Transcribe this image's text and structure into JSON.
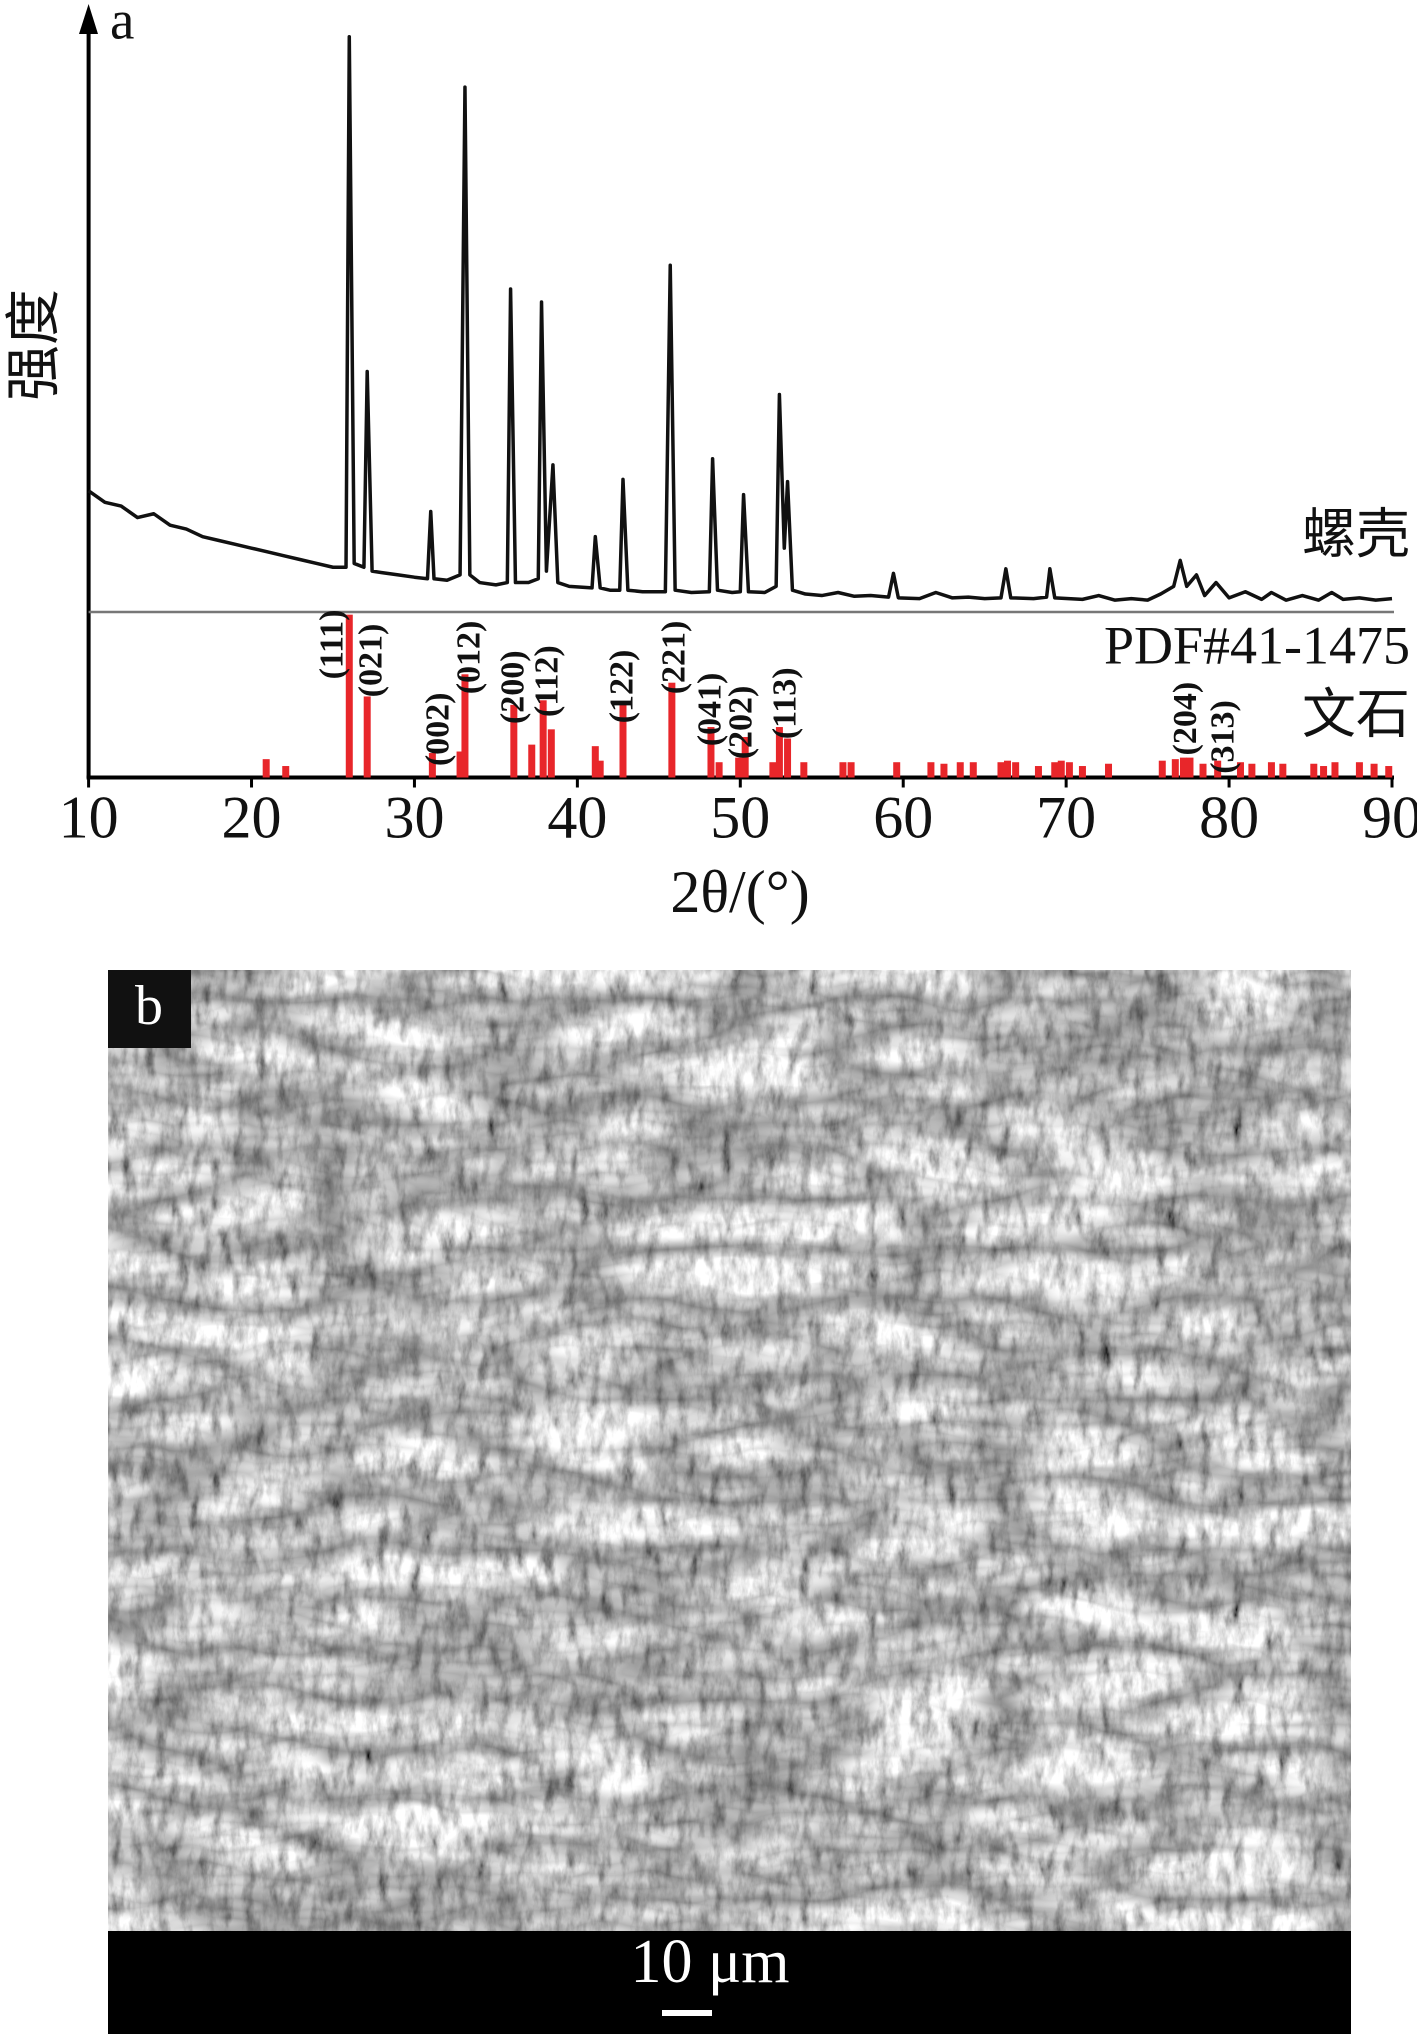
{
  "chart_data": {
    "type": "line",
    "label": "a",
    "ylabel": "强度",
    "xlabel": "2θ/(°)",
    "xlim": [
      10,
      90
    ],
    "xticks": [
      10,
      20,
      30,
      40,
      50,
      60,
      70,
      80,
      90
    ],
    "ylim": [
      0,
      100
    ],
    "series": [
      {
        "name": [
          "螺壳"
        ],
        "type": "line",
        "color": "#111111",
        "x": [
          10,
          11,
          12,
          13,
          14,
          15,
          16,
          17,
          18,
          19,
          20,
          21,
          22,
          23,
          24,
          25,
          25.8,
          26.0,
          26.3,
          26.9,
          27.1,
          27.4,
          28,
          29,
          30,
          30.8,
          31.0,
          31.2,
          32,
          32.8,
          33.1,
          33.4,
          34,
          35,
          35.7,
          35.9,
          36.2,
          37,
          37.6,
          37.8,
          38.1,
          38.5,
          38.8,
          39.5,
          40.9,
          41.1,
          41.4,
          42,
          42.6,
          42.8,
          43.1,
          44,
          45.4,
          45.7,
          46.0,
          47,
          48.1,
          48.3,
          48.6,
          49.5,
          50.0,
          50.2,
          50.5,
          51.5,
          52.2,
          52.4,
          52.7,
          52.9,
          53.2,
          54,
          55,
          56,
          57,
          58,
          59.1,
          59.4,
          59.7,
          61,
          62,
          63,
          64,
          65,
          66,
          66.3,
          66.6,
          68,
          68.8,
          69.0,
          69.3,
          71,
          72,
          73,
          74,
          75,
          75.8,
          76.6,
          77.0,
          77.4,
          78,
          78.5,
          79.2,
          80,
          81,
          82,
          82.6,
          83.5,
          84.5,
          85.5,
          86.3,
          87,
          88,
          89,
          90
        ],
        "values": [
          37.5,
          36,
          35.5,
          34,
          34.5,
          33,
          32.5,
          31.5,
          31,
          30.5,
          30,
          29.5,
          29,
          28.5,
          28,
          27.5,
          27.5,
          96.9,
          28,
          27.5,
          53.1,
          27,
          26.8,
          26.5,
          26.2,
          26,
          34.8,
          26,
          25.8,
          26.5,
          90.3,
          26.5,
          25.5,
          25.2,
          25.5,
          63.9,
          25.5,
          25.5,
          26,
          62.2,
          27,
          40.9,
          25.5,
          25,
          24.8,
          31.5,
          24.8,
          24.5,
          24.5,
          39,
          24.5,
          24.3,
          24.3,
          67,
          24.5,
          24.2,
          24.3,
          41.7,
          24.5,
          24.2,
          24.3,
          37,
          24.3,
          24.2,
          25,
          50.1,
          30,
          38.7,
          24.5,
          24,
          23.8,
          24.2,
          23.7,
          23.8,
          23.6,
          26.7,
          23.5,
          23.4,
          24.2,
          23.5,
          23.6,
          23.4,
          23.5,
          27.3,
          23.5,
          23.4,
          23.6,
          27.3,
          23.5,
          23.3,
          23.8,
          23.2,
          23.4,
          23.2,
          24,
          25,
          28.4,
          25,
          26.5,
          23.8,
          25.5,
          23.5,
          24.3,
          23.3,
          24.2,
          23.2,
          23.8,
          23.2,
          24.2,
          23.3,
          23.5,
          23.2,
          23.4
        ]
      },
      {
        "name": [
          "PDF#41-1475",
          "文石"
        ],
        "type": "stick",
        "color": "#e8262a",
        "x": [
          20.9,
          22.1,
          26.0,
          27.1,
          31.1,
          32.8,
          33.1,
          36.1,
          37.2,
          37.9,
          38.4,
          41.1,
          41.4,
          42.8,
          45.8,
          48.2,
          48.7,
          49.9,
          50.3,
          52.0,
          52.4,
          52.9,
          53.9,
          56.3,
          56.8,
          59.6,
          61.7,
          62.5,
          63.5,
          64.3,
          66.0,
          66.4,
          66.9,
          68.3,
          69.3,
          69.7,
          70.2,
          71.0,
          72.6,
          75.9,
          76.7,
          77.2,
          77.6,
          78.4,
          79.3,
          80.7,
          81.4,
          82.6,
          83.3,
          85.2,
          85.8,
          86.5,
          88.0,
          88.9,
          89.8
        ],
        "values": [
          2.4,
          1.5,
          21.3,
          10.6,
          3.2,
          3.4,
          13.5,
          9.5,
          4.3,
          10.1,
          6.3,
          4.1,
          2.2,
          9.5,
          12.4,
          6.6,
          2,
          2.6,
          5.3,
          2,
          6.6,
          5.1,
          2,
          2,
          2,
          2,
          2,
          1.8,
          2,
          2,
          2,
          2.2,
          2,
          1.5,
          2,
          2.2,
          2,
          1.5,
          1.8,
          2.2,
          2.4,
          2.6,
          2.6,
          1.8,
          2.2,
          2,
          1.8,
          2,
          1.8,
          1.8,
          1.5,
          2,
          2,
          1.8,
          1.5
        ]
      }
    ],
    "annotations": [
      {
        "text": "(111)",
        "x": 25.1,
        "y": 17.4
      },
      {
        "text": "(021)",
        "x": 27.5,
        "y": 15.3
      },
      {
        "text": "(002)",
        "x": 31.6,
        "y": 6.3
      },
      {
        "text": "(012)",
        "x": 33.5,
        "y": 15.7
      },
      {
        "text": "(200)",
        "x": 36.2,
        "y": 11.8
      },
      {
        "text": "(112)",
        "x": 38.3,
        "y": 12.6
      },
      {
        "text": "(122)",
        "x": 42.9,
        "y": 11.9
      },
      {
        "text": "(221)",
        "x": 46.1,
        "y": 15.7
      },
      {
        "text": "(041)",
        "x": 48.3,
        "y": 8.9
      },
      {
        "text": "(202)",
        "x": 50.2,
        "y": 7.2
      },
      {
        "text": "(113)",
        "x": 52.9,
        "y": 9.7
      },
      {
        "text": "(204)",
        "x": 77.5,
        "y": 7.7
      },
      {
        "text": "(313)",
        "x": 79.8,
        "y": 5.3
      }
    ]
  },
  "panel_b": {
    "label": "b",
    "scale_bar": "10 μm"
  }
}
